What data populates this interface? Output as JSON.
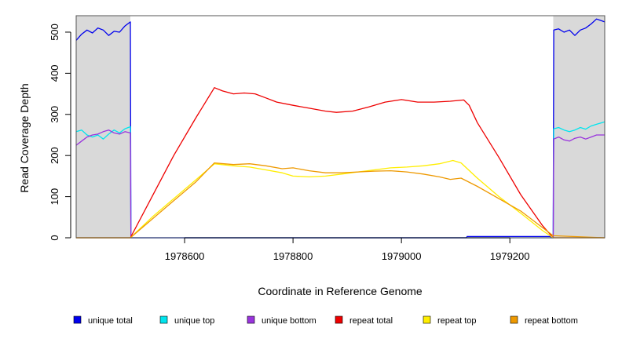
{
  "chart_data": {
    "type": "line",
    "title": "",
    "xlabel": "Coordinate in Reference Genome",
    "ylabel": "Read Coverage Depth",
    "xlim": [
      1978400,
      1979375
    ],
    "ylim": [
      0,
      540
    ],
    "x_ticks": [
      1978600,
      1978800,
      1979000,
      1979200
    ],
    "x_tick_labels": [
      "1978600",
      "1978800",
      "1979000",
      "1979200"
    ],
    "y_ticks": [
      0,
      100,
      200,
      300,
      400,
      500
    ],
    "y_tick_labels": [
      "0",
      "100",
      "200",
      "300",
      "400",
      "500"
    ],
    "shaded_regions": [
      [
        1978400,
        1978500
      ],
      [
        1979280,
        1979375
      ]
    ],
    "background": {
      "plot_area": "#ffffff",
      "shaded": "#d9d9d9"
    },
    "grid": false,
    "legend_position": "bottom",
    "series": [
      {
        "name": "unique total",
        "color": "#0000ee",
        "points": [
          [
            1978400,
            480
          ],
          [
            1978410,
            495
          ],
          [
            1978420,
            505
          ],
          [
            1978430,
            498
          ],
          [
            1978440,
            510
          ],
          [
            1978450,
            505
          ],
          [
            1978460,
            492
          ],
          [
            1978470,
            502
          ],
          [
            1978480,
            500
          ],
          [
            1978490,
            515
          ],
          [
            1978500,
            525
          ],
          [
            1978501,
            0
          ],
          [
            1979120,
            0
          ],
          [
            1979121,
            3
          ],
          [
            1979275,
            3
          ],
          [
            1979276,
            0
          ],
          [
            1979280,
            0
          ],
          [
            1979281,
            505
          ],
          [
            1979290,
            508
          ],
          [
            1979300,
            500
          ],
          [
            1979310,
            505
          ],
          [
            1979320,
            492
          ],
          [
            1979330,
            505
          ],
          [
            1979340,
            510
          ],
          [
            1979350,
            520
          ],
          [
            1979360,
            532
          ],
          [
            1979375,
            525
          ]
        ]
      },
      {
        "name": "unique top",
        "color": "#00e5ee",
        "points": [
          [
            1978400,
            258
          ],
          [
            1978410,
            262
          ],
          [
            1978420,
            250
          ],
          [
            1978430,
            245
          ],
          [
            1978440,
            250
          ],
          [
            1978450,
            240
          ],
          [
            1978460,
            252
          ],
          [
            1978470,
            262
          ],
          [
            1978480,
            255
          ],
          [
            1978490,
            265
          ],
          [
            1978500,
            270
          ],
          [
            1978501,
            0
          ],
          [
            1979280,
            0
          ],
          [
            1979281,
            265
          ],
          [
            1979290,
            268
          ],
          [
            1979300,
            262
          ],
          [
            1979310,
            258
          ],
          [
            1979320,
            262
          ],
          [
            1979330,
            268
          ],
          [
            1979340,
            264
          ],
          [
            1979350,
            272
          ],
          [
            1979360,
            276
          ],
          [
            1979375,
            282
          ]
        ]
      },
      {
        "name": "unique bottom",
        "color": "#9933dd",
        "points": [
          [
            1978400,
            225
          ],
          [
            1978410,
            235
          ],
          [
            1978420,
            245
          ],
          [
            1978430,
            250
          ],
          [
            1978440,
            252
          ],
          [
            1978450,
            258
          ],
          [
            1978460,
            262
          ],
          [
            1978470,
            255
          ],
          [
            1978480,
            252
          ],
          [
            1978490,
            258
          ],
          [
            1978500,
            255
          ],
          [
            1978501,
            0
          ],
          [
            1979280,
            0
          ],
          [
            1979281,
            240
          ],
          [
            1979290,
            245
          ],
          [
            1979300,
            238
          ],
          [
            1979310,
            235
          ],
          [
            1979320,
            242
          ],
          [
            1979330,
            245
          ],
          [
            1979340,
            240
          ],
          [
            1979350,
            245
          ],
          [
            1979360,
            250
          ],
          [
            1979375,
            250
          ]
        ]
      },
      {
        "name": "repeat total",
        "color": "#ee0000",
        "points": [
          [
            1978400,
            0
          ],
          [
            1978500,
            0
          ],
          [
            1978540,
            100
          ],
          [
            1978580,
            200
          ],
          [
            1978620,
            290
          ],
          [
            1978655,
            365
          ],
          [
            1978670,
            357
          ],
          [
            1978690,
            350
          ],
          [
            1978710,
            352
          ],
          [
            1978730,
            350
          ],
          [
            1978750,
            340
          ],
          [
            1978770,
            330
          ],
          [
            1978800,
            322
          ],
          [
            1978830,
            315
          ],
          [
            1978860,
            308
          ],
          [
            1978880,
            305
          ],
          [
            1978910,
            308
          ],
          [
            1978940,
            318
          ],
          [
            1978970,
            330
          ],
          [
            1979000,
            336
          ],
          [
            1979030,
            330
          ],
          [
            1979060,
            330
          ],
          [
            1979090,
            332
          ],
          [
            1979115,
            335
          ],
          [
            1979125,
            322
          ],
          [
            1979140,
            280
          ],
          [
            1979180,
            195
          ],
          [
            1979220,
            105
          ],
          [
            1979260,
            30
          ],
          [
            1979280,
            0
          ],
          [
            1979375,
            0
          ]
        ]
      },
      {
        "name": "repeat top",
        "color": "#ffee00",
        "points": [
          [
            1978400,
            0
          ],
          [
            1978500,
            0
          ],
          [
            1978540,
            50
          ],
          [
            1978580,
            95
          ],
          [
            1978620,
            140
          ],
          [
            1978655,
            180
          ],
          [
            1978690,
            175
          ],
          [
            1978720,
            172
          ],
          [
            1978750,
            165
          ],
          [
            1978780,
            158
          ],
          [
            1978800,
            150
          ],
          [
            1978830,
            148
          ],
          [
            1978860,
            150
          ],
          [
            1978890,
            155
          ],
          [
            1978920,
            160
          ],
          [
            1978950,
            165
          ],
          [
            1978980,
            170
          ],
          [
            1979010,
            172
          ],
          [
            1979040,
            175
          ],
          [
            1979070,
            180
          ],
          [
            1979095,
            188
          ],
          [
            1979110,
            182
          ],
          [
            1979140,
            145
          ],
          [
            1979180,
            100
          ],
          [
            1979220,
            60
          ],
          [
            1979260,
            18
          ],
          [
            1979280,
            0
          ],
          [
            1979375,
            0
          ]
        ]
      },
      {
        "name": "repeat bottom",
        "color": "#ee9900",
        "points": [
          [
            1978400,
            0
          ],
          [
            1978500,
            0
          ],
          [
            1978540,
            45
          ],
          [
            1978580,
            90
          ],
          [
            1978620,
            135
          ],
          [
            1978655,
            182
          ],
          [
            1978690,
            178
          ],
          [
            1978720,
            180
          ],
          [
            1978750,
            175
          ],
          [
            1978780,
            168
          ],
          [
            1978800,
            170
          ],
          [
            1978830,
            163
          ],
          [
            1978860,
            158
          ],
          [
            1978890,
            158
          ],
          [
            1978920,
            160
          ],
          [
            1978950,
            162
          ],
          [
            1978980,
            163
          ],
          [
            1979010,
            160
          ],
          [
            1979040,
            155
          ],
          [
            1979070,
            148
          ],
          [
            1979090,
            142
          ],
          [
            1979110,
            145
          ],
          [
            1979140,
            125
          ],
          [
            1979180,
            95
          ],
          [
            1979220,
            65
          ],
          [
            1979260,
            25
          ],
          [
            1979280,
            5
          ],
          [
            1979375,
            0
          ]
        ]
      }
    ]
  }
}
